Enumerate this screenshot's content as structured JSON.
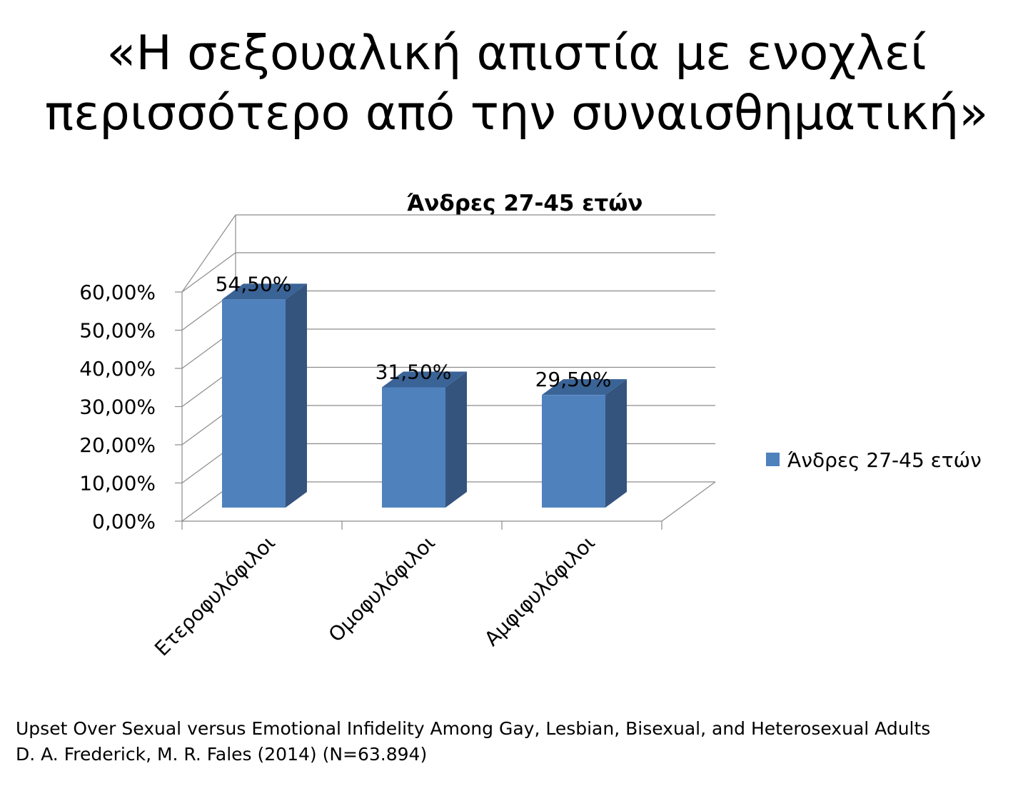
{
  "slide": {
    "title_line1": "«Η σεξουαλική απιστία με ενοχλεί",
    "title_line2": "περισσότερο από την συναισθηματική»"
  },
  "chart_data": {
    "type": "bar",
    "style": "3d-column",
    "title": "Άνδρες 27-45 ετών",
    "categories": [
      "Ετεροφυλόφιλοι",
      "Ομοφυλόφιλοι",
      "Αμφιφυλόφιλοι"
    ],
    "series": [
      {
        "name": "Άνδρες 27-45 ετών",
        "values": [
          54.5,
          31.5,
          29.5
        ],
        "color": "#4F81BD",
        "side_color": "#35547D"
      }
    ],
    "data_labels": [
      "54,50%",
      "31,50%",
      "29,50%"
    ],
    "y_ticks": [
      "0,00%",
      "10,00%",
      "20,00%",
      "30,00%",
      "40,00%",
      "50,00%",
      "60,00%"
    ],
    "ylim": [
      0,
      60
    ],
    "grid": true,
    "legend_position": "right"
  },
  "footer": {
    "line1": "Upset Over Sexual versus Emotional Infidelity Among Gay, Lesbian, Bisexual, and Heterosexual Adults",
    "line2": "D. A. Frederick, M. R. Fales (2014) (N=63.894)"
  }
}
